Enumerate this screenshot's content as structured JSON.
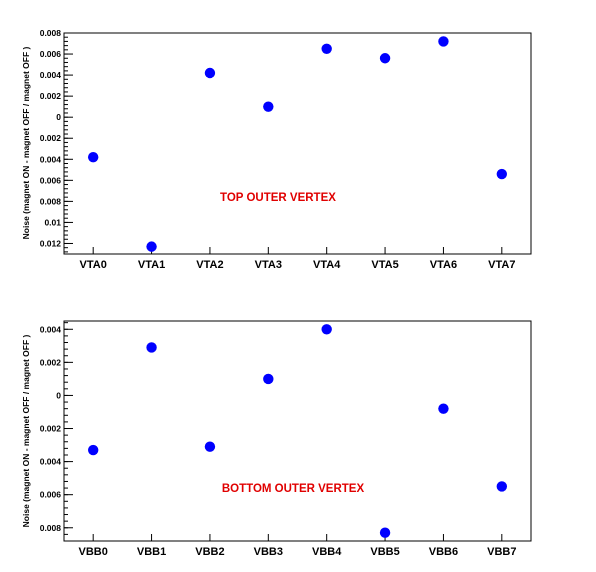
{
  "chart_data": [
    {
      "type": "scatter",
      "title": "",
      "annotation": "TOP OUTER VERTEX",
      "ylabel": "Noise (magnet ON - magnet OFF / magnet OFF )",
      "xlabel": "",
      "categories": [
        "VTA0",
        "VTA1",
        "VTA2",
        "VTA3",
        "VTA4",
        "VTA5",
        "VTA6",
        "VTA7"
      ],
      "values": [
        -0.0038,
        -0.0123,
        0.0042,
        0.001,
        0.0065,
        0.0056,
        0.0072,
        -0.0054
      ],
      "ylim": [
        -0.013,
        0.008
      ],
      "yticks": [
        0.008,
        0.006,
        0.004,
        0.002,
        0,
        -0.002,
        -0.004,
        -0.006,
        -0.008,
        -0.01,
        -0.012
      ],
      "ytick_labels": [
        "0.008",
        "0.006",
        "0.004",
        "0.002",
        "0",
        "0.002",
        "0.004",
        "0.006",
        "0.008",
        "0.01",
        "0.012"
      ],
      "marker_color": "#0000ff",
      "annotation_color": "#e00000",
      "grid": false
    },
    {
      "type": "scatter",
      "title": "",
      "annotation": "BOTTOM OUTER VERTEX",
      "ylabel": "Noise (magnet ON - magnet OFF / magnet OFF )",
      "xlabel": "",
      "categories": [
        "VBB0",
        "VBB1",
        "VBB2",
        "VBB3",
        "VBB4",
        "VBB5",
        "VBB6",
        "VBB7"
      ],
      "values": [
        -0.0033,
        0.0029,
        -0.0031,
        0.001,
        0.004,
        -0.0083,
        -0.0008,
        -0.0055
      ],
      "ylim": [
        -0.0088,
        0.0045
      ],
      "yticks": [
        0.004,
        0.002,
        0,
        -0.002,
        -0.004,
        -0.006,
        -0.008
      ],
      "ytick_labels": [
        "0.004",
        "0.002",
        "0",
        "0.002",
        "0.004",
        "0.006",
        "0.008"
      ],
      "marker_color": "#0000ff",
      "annotation_color": "#e00000",
      "grid": false
    }
  ]
}
